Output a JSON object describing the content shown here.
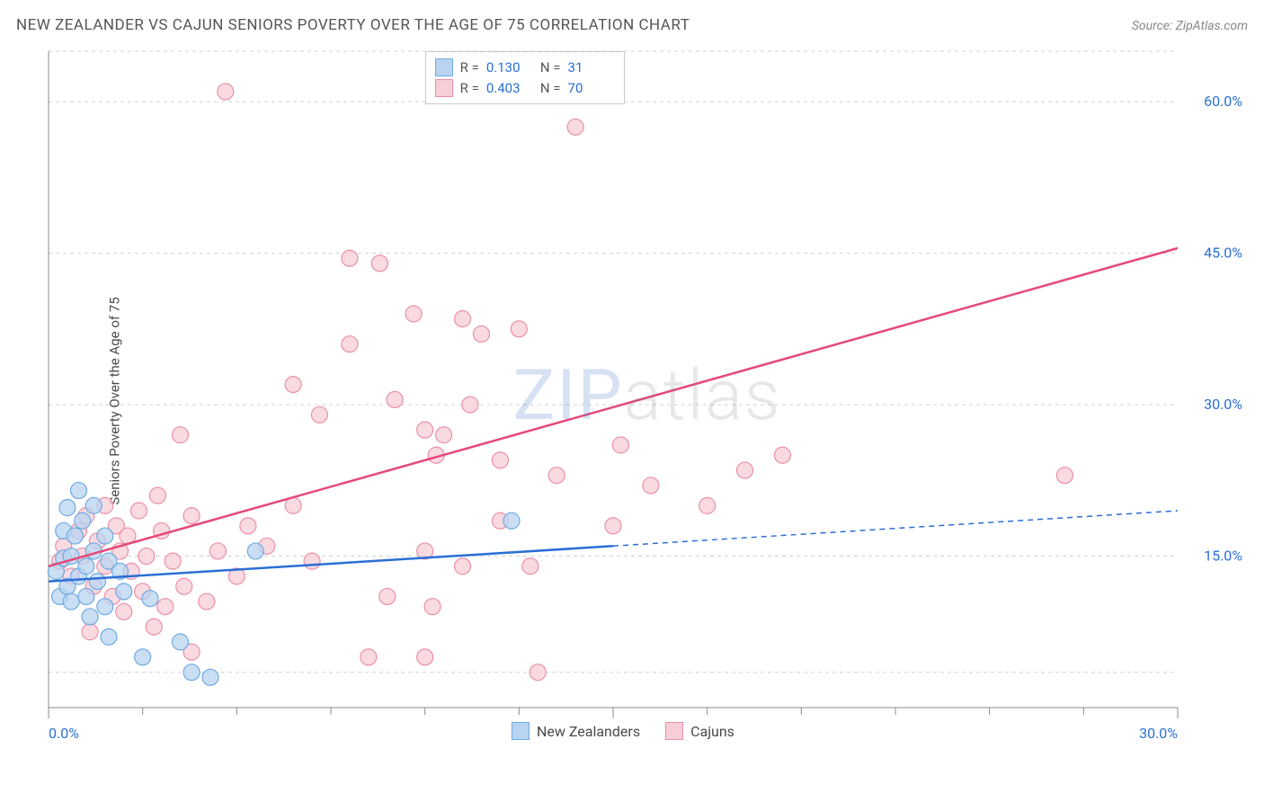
{
  "header": {
    "title": "NEW ZEALANDER VS CAJUN SENIORS POVERTY OVER THE AGE OF 75 CORRELATION CHART",
    "source_prefix": "Source: ",
    "source": "ZipAtlas.com"
  },
  "watermark": {
    "part1": "ZIP",
    "part2": "atlas"
  },
  "ylabel": "Seniors Poverty Over the Age of 75",
  "chart": {
    "type": "scatter",
    "background_color": "#ffffff",
    "grid_color": "#d0d0d0",
    "axis_color": "#888888",
    "tick_label_color": "#2a6fd6",
    "xlim": [
      0,
      30
    ],
    "ylim": [
      0,
      65
    ],
    "x_ticks_major": [
      0,
      15,
      30
    ],
    "x_tick_labels": [
      "0.0%",
      "",
      "30.0%"
    ],
    "x_ticks_minor": [
      2.5,
      5,
      7.5,
      10,
      12.5,
      17.5,
      20,
      22.5,
      25,
      27.5
    ],
    "y_ticks": [
      15,
      30,
      45,
      60
    ],
    "y_tick_labels": [
      "15.0%",
      "30.0%",
      "45.0%",
      "60.0%"
    ],
    "y_grid_extra": [
      3.5,
      65
    ],
    "point_radius": 9,
    "series": [
      {
        "name": "New Zealanders",
        "fill": "#b8d4f0",
        "stroke": "#6faae3",
        "line_color": "#2a6fd6",
        "r_value": "0.130",
        "n_value": "31",
        "regression": {
          "x1": 0,
          "y1": 12.5,
          "x2": 15,
          "y2": 16.0,
          "extend_x": 30,
          "extend_y": 19.5,
          "dash_after": 15
        },
        "points": [
          [
            0.2,
            13.5
          ],
          [
            0.3,
            11.0
          ],
          [
            0.4,
            14.8
          ],
          [
            0.4,
            17.5
          ],
          [
            0.5,
            12.0
          ],
          [
            0.5,
            19.8
          ],
          [
            0.6,
            10.5
          ],
          [
            0.6,
            15.0
          ],
          [
            0.7,
            17.0
          ],
          [
            0.8,
            21.5
          ],
          [
            0.8,
            13.0
          ],
          [
            0.9,
            18.5
          ],
          [
            1.0,
            11.0
          ],
          [
            1.0,
            14.0
          ],
          [
            1.1,
            9.0
          ],
          [
            1.2,
            20.0
          ],
          [
            1.2,
            15.5
          ],
          [
            1.3,
            12.5
          ],
          [
            1.5,
            10.0
          ],
          [
            1.5,
            17.0
          ],
          [
            1.6,
            14.5
          ],
          [
            1.6,
            7.0
          ],
          [
            1.9,
            13.5
          ],
          [
            2.5,
            5.0
          ],
          [
            2.7,
            10.8
          ],
          [
            3.5,
            6.5
          ],
          [
            3.8,
            3.5
          ],
          [
            4.3,
            3.0
          ],
          [
            5.5,
            15.5
          ],
          [
            12.3,
            18.5
          ],
          [
            2.0,
            11.5
          ]
        ]
      },
      {
        "name": "Cajuns",
        "fill": "#f7cdd7",
        "stroke": "#eb8fa9",
        "line_color": "#e6487a",
        "r_value": "0.403",
        "n_value": "70",
        "regression": {
          "x1": 0,
          "y1": 14.0,
          "x2": 30,
          "y2": 45.5
        },
        "points": [
          [
            0.3,
            14.5
          ],
          [
            0.4,
            16.0
          ],
          [
            0.6,
            13.0
          ],
          [
            0.8,
            17.5
          ],
          [
            0.9,
            15.0
          ],
          [
            1.0,
            19.0
          ],
          [
            1.1,
            7.5
          ],
          [
            1.2,
            12.0
          ],
          [
            1.3,
            16.5
          ],
          [
            1.5,
            14.0
          ],
          [
            1.5,
            20.0
          ],
          [
            1.7,
            11.0
          ],
          [
            1.8,
            18.0
          ],
          [
            1.9,
            15.5
          ],
          [
            2.0,
            9.5
          ],
          [
            2.1,
            17.0
          ],
          [
            2.2,
            13.5
          ],
          [
            2.4,
            19.5
          ],
          [
            2.5,
            11.5
          ],
          [
            2.6,
            15.0
          ],
          [
            2.8,
            8.0
          ],
          [
            2.9,
            21.0
          ],
          [
            3.0,
            17.5
          ],
          [
            3.1,
            10.0
          ],
          [
            3.3,
            14.5
          ],
          [
            3.5,
            27.0
          ],
          [
            3.6,
            12.0
          ],
          [
            3.8,
            19.0
          ],
          [
            3.8,
            5.5
          ],
          [
            4.2,
            10.5
          ],
          [
            4.5,
            15.5
          ],
          [
            4.7,
            61.0
          ],
          [
            5.0,
            13.0
          ],
          [
            5.3,
            18.0
          ],
          [
            6.5,
            32.0
          ],
          [
            6.5,
            20.0
          ],
          [
            7.0,
            14.5
          ],
          [
            7.2,
            29.0
          ],
          [
            8.0,
            44.5
          ],
          [
            8.0,
            36.0
          ],
          [
            8.5,
            5.0
          ],
          [
            8.8,
            44.0
          ],
          [
            9.0,
            11.0
          ],
          [
            9.2,
            30.5
          ],
          [
            9.7,
            39.0
          ],
          [
            10.0,
            27.5
          ],
          [
            10.0,
            5.0
          ],
          [
            10.0,
            15.5
          ],
          [
            10.2,
            10.0
          ],
          [
            10.3,
            25.0
          ],
          [
            10.5,
            27.0
          ],
          [
            11.0,
            38.5
          ],
          [
            11.0,
            14.0
          ],
          [
            11.2,
            30.0
          ],
          [
            11.5,
            37.0
          ],
          [
            12.0,
            24.5
          ],
          [
            12.0,
            18.5
          ],
          [
            12.5,
            37.5
          ],
          [
            12.8,
            14.0
          ],
          [
            13.0,
            3.5
          ],
          [
            13.5,
            23.0
          ],
          [
            14.0,
            57.5
          ],
          [
            15.0,
            18.0
          ],
          [
            15.2,
            26.0
          ],
          [
            16.0,
            22.0
          ],
          [
            17.5,
            20.0
          ],
          [
            18.5,
            23.5
          ],
          [
            19.5,
            25.0
          ],
          [
            27.0,
            23.0
          ],
          [
            5.8,
            16.0
          ]
        ]
      }
    ],
    "legend_top": {
      "r_label": "R =",
      "n_label": "N ="
    },
    "legend_bottom": [
      {
        "label": "New Zealanders",
        "fill": "#b8d4f0",
        "stroke": "#6faae3"
      },
      {
        "label": "Cajuns",
        "fill": "#f7cdd7",
        "stroke": "#eb8fa9"
      }
    ]
  }
}
